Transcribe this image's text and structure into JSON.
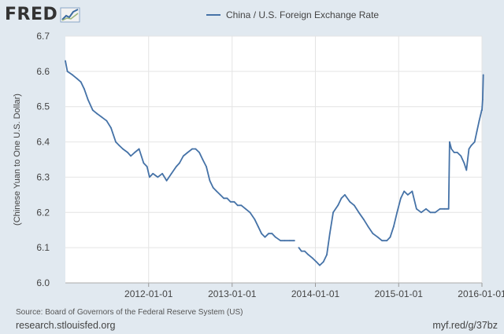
{
  "brand": {
    "name": "FRED",
    "logo_icon": "line-chart-icon"
  },
  "colors": {
    "background": "#e1e9f0",
    "plot_background": "#ffffff",
    "series": "#4572a7",
    "grid": "#e4e4e4",
    "text": "#444444"
  },
  "footer": {
    "source": "Source: Board of Governors of the Federal Reserve System (US)",
    "left_link": "research.stlouisfed.org",
    "right_link": "myf.red/g/37bz"
  },
  "chart_data": {
    "type": "line",
    "title": "",
    "xlabel": "",
    "ylabel": "(Chinese Yuan to One U.S. Dollar)",
    "xlim": [
      "2011-01-01",
      "2016-01-01"
    ],
    "ylim": [
      6.0,
      6.7
    ],
    "yticks": [
      "6.0",
      "6.1",
      "6.2",
      "6.3",
      "6.4",
      "6.5",
      "6.6",
      "6.7"
    ],
    "xticks": [
      "2012-01-01",
      "2013-01-01",
      "2014-01-01",
      "2015-01-01",
      "2016-01-01"
    ],
    "grid": true,
    "legend_position": "top",
    "series": [
      {
        "name": "China / U.S. Foreign Exchange Rate",
        "color": "#4572a7",
        "x": [
          "2011-01-01",
          "2011-01-10",
          "2011-02-01",
          "2011-02-20",
          "2011-03-10",
          "2011-03-25",
          "2011-04-10",
          "2011-05-01",
          "2011-05-20",
          "2011-06-10",
          "2011-07-01",
          "2011-07-20",
          "2011-08-10",
          "2011-08-25",
          "2011-09-10",
          "2011-10-01",
          "2011-10-15",
          "2011-11-01",
          "2011-11-20",
          "2011-12-10",
          "2011-12-25",
          "2012-01-05",
          "2012-01-20",
          "2012-02-10",
          "2012-03-01",
          "2012-03-20",
          "2012-04-10",
          "2012-05-01",
          "2012-05-15",
          "2012-06-01",
          "2012-06-20",
          "2012-07-10",
          "2012-07-25",
          "2012-08-10",
          "2012-08-25",
          "2012-09-10",
          "2012-09-25",
          "2012-10-10",
          "2012-10-25",
          "2012-11-10",
          "2012-11-25",
          "2012-12-10",
          "2012-12-25",
          "2013-01-10",
          "2013-01-25",
          "2013-02-10",
          "2013-03-01",
          "2013-03-20",
          "2013-04-10",
          "2013-04-25",
          "2013-05-10",
          "2013-05-25",
          "2013-06-10",
          "2013-06-25",
          "2013-07-10",
          "2013-08-01",
          "2013-08-20",
          "2013-09-10",
          "2013-10-01",
          "2013-10-10",
          "2013-10-20",
          "2013-11-01",
          "2013-11-15",
          "2013-12-01",
          "2013-12-20",
          "2014-01-05",
          "2014-01-20",
          "2014-02-05",
          "2014-02-20",
          "2014-03-05",
          "2014-03-20",
          "2014-04-10",
          "2014-04-25",
          "2014-05-10",
          "2014-06-01",
          "2014-06-20",
          "2014-07-10",
          "2014-08-01",
          "2014-08-20",
          "2014-09-10",
          "2014-10-01",
          "2014-10-20",
          "2014-11-10",
          "2014-11-25",
          "2014-12-10",
          "2014-12-25",
          "2015-01-10",
          "2015-01-25",
          "2015-02-10",
          "2015-03-01",
          "2015-03-20",
          "2015-04-10",
          "2015-05-01",
          "2015-05-20",
          "2015-06-10",
          "2015-07-01",
          "2015-07-20",
          "2015-08-08",
          "2015-08-12",
          "2015-08-20",
          "2015-09-01",
          "2015-09-15",
          "2015-10-01",
          "2015-10-15",
          "2015-10-25",
          "2015-11-05",
          "2015-11-15",
          "2015-11-30",
          "2015-12-10",
          "2015-12-20",
          "2015-12-31",
          "2016-01-01",
          "2016-01-04",
          "2016-01-07"
        ],
        "values": [
          6.63,
          6.6,
          6.59,
          6.58,
          6.57,
          6.55,
          6.52,
          6.49,
          6.48,
          6.47,
          6.46,
          6.44,
          6.4,
          6.39,
          6.38,
          6.37,
          6.36,
          6.37,
          6.38,
          6.34,
          6.33,
          6.3,
          6.31,
          6.3,
          6.31,
          6.29,
          6.31,
          6.33,
          6.34,
          6.36,
          6.37,
          6.38,
          6.38,
          6.37,
          6.35,
          6.33,
          6.29,
          6.27,
          6.26,
          6.25,
          6.24,
          6.24,
          6.23,
          6.23,
          6.22,
          6.22,
          6.21,
          6.2,
          6.18,
          6.16,
          6.14,
          6.13,
          6.14,
          6.14,
          6.13,
          6.12,
          6.12,
          6.12,
          6.12,
          null,
          6.1,
          6.09,
          6.09,
          6.08,
          6.07,
          6.06,
          6.05,
          6.06,
          6.08,
          6.14,
          6.2,
          6.22,
          6.24,
          6.25,
          6.23,
          6.22,
          6.2,
          6.18,
          6.16,
          6.14,
          6.13,
          6.12,
          6.12,
          6.13,
          6.16,
          6.2,
          6.24,
          6.26,
          6.25,
          6.26,
          6.21,
          6.2,
          6.21,
          6.2,
          6.2,
          6.21,
          6.21,
          6.21,
          6.4,
          6.38,
          6.37,
          6.37,
          6.36,
          6.34,
          6.32,
          6.38,
          6.39,
          6.4,
          6.43,
          6.46,
          6.49,
          6.49,
          6.52,
          6.59
        ]
      }
    ]
  }
}
